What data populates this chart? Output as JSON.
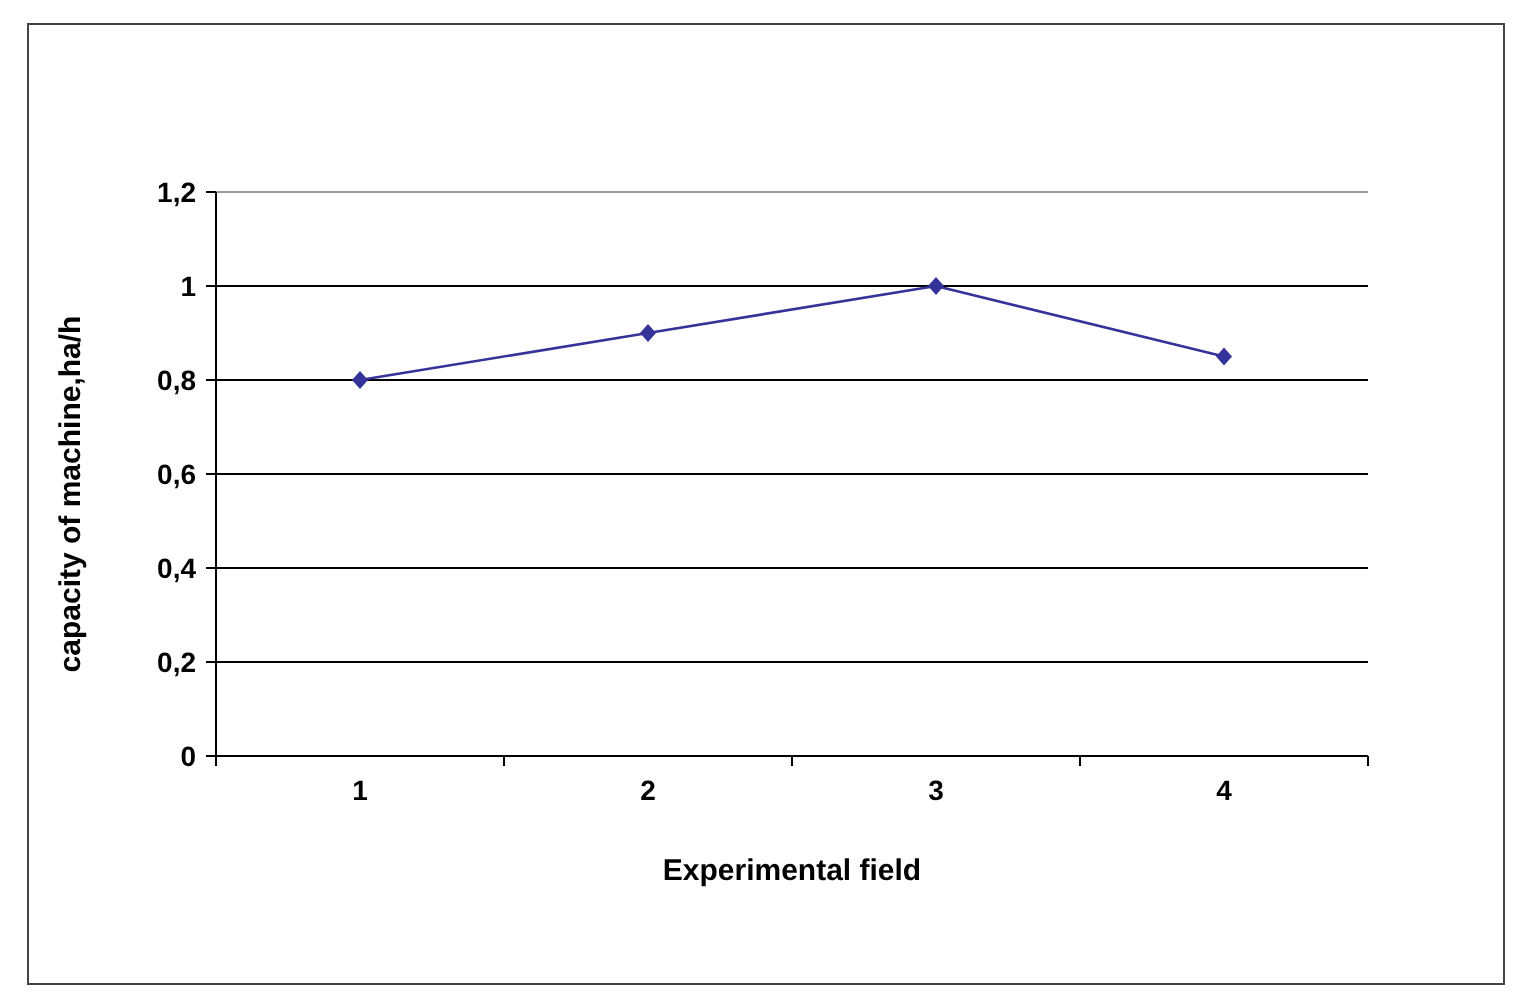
{
  "chart_data": {
    "type": "line",
    "xlabel": "Experimental field",
    "ylabel": "capacity of machine,ha/h",
    "categories": [
      "1",
      "2",
      "3",
      "4"
    ],
    "series": [
      {
        "color": "#333399",
        "values": [
          0.8,
          0.9,
          1.0,
          0.85
        ]
      }
    ],
    "ylim": [
      0,
      1.2
    ],
    "yticks": [
      0,
      {
        "value": 0.2,
        "label": "0,2"
      },
      {
        "value": 0.4,
        "label": "0,4"
      },
      {
        "value": 0.6,
        "label": "0,6"
      },
      {
        "value": 0.8,
        "label": "0,8"
      },
      1,
      {
        "value": 1.2,
        "label": "1,2"
      }
    ],
    "grid": "y",
    "marker": "diamond",
    "line_style": "solid"
  }
}
